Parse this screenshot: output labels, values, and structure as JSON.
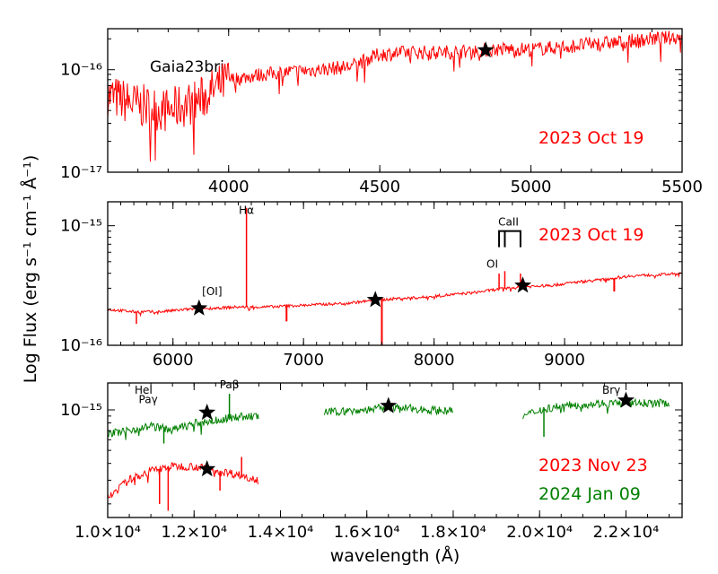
{
  "chart_data": {
    "type": "line",
    "object_name": "Gaia23bri",
    "ylabel": "Log Flux (erg s⁻¹ cm⁻¹ Å⁻¹)",
    "xlabel": "wavelength (Å)",
    "panels": [
      {
        "id": "blue",
        "xlim": [
          3600,
          5500
        ],
        "ylim_log": [
          -17,
          -15.6
        ],
        "x_ticks": [
          4000,
          4500,
          5000,
          5500
        ],
        "x_tick_labels": [
          "4000",
          "4500",
          "5000",
          "5500"
        ],
        "y_ticks": [
          -17,
          -16
        ],
        "y_tick_labels": [
          "10⁻¹⁷",
          "10⁻¹⁶"
        ],
        "dates": [
          {
            "label": "2023 Oct 19",
            "color": "#ff0000"
          }
        ],
        "series": [
          {
            "name": "2023 Oct 19",
            "color": "#ff0000",
            "x": [
              3600,
              3700,
              3800,
              3900,
              4000,
              4100,
              4200,
              4300,
              4400,
              4500,
              4600,
              4700,
              4800,
              4900,
              5000,
              5100,
              5200,
              5300,
              5400,
              5500
            ],
            "y": [
              -16.25,
              -16.35,
              -16.4,
              -16.3,
              -16.1,
              -16.05,
              -16.02,
              -16.0,
              -15.97,
              -15.85,
              -15.83,
              -15.83,
              -15.82,
              -15.8,
              -15.8,
              -15.78,
              -15.75,
              -15.73,
              -15.7,
              -15.68
            ]
          }
        ],
        "markers": [
          {
            "x": 4850,
            "y": -15.81
          }
        ],
        "annotations": []
      },
      {
        "id": "optical",
        "xlim": [
          5500,
          9900
        ],
        "ylim_log": [
          -16,
          -14.8
        ],
        "x_ticks": [
          6000,
          7000,
          8000,
          9000
        ],
        "x_tick_labels": [
          "6000",
          "7000",
          "8000",
          "9000"
        ],
        "y_ticks": [
          -16,
          -15
        ],
        "y_tick_labels": [
          "10⁻¹⁶",
          "10⁻¹⁵"
        ],
        "dates": [
          {
            "label": "2023 Oct 19",
            "color": "#ff0000"
          }
        ],
        "series": [
          {
            "name": "2023 Oct 19",
            "color": "#ff0000",
            "x": [
              5500,
              5700,
              5900,
              6100,
              6300,
              6500,
              6700,
              6900,
              7100,
              7300,
              7500,
              7700,
              7900,
              8100,
              8300,
              8500,
              8700,
              8900,
              9100,
              9300,
              9500,
              9700,
              9900
            ],
            "y": [
              -15.7,
              -15.72,
              -15.72,
              -15.7,
              -15.69,
              -15.68,
              -15.68,
              -15.67,
              -15.66,
              -15.65,
              -15.63,
              -15.61,
              -15.6,
              -15.58,
              -15.56,
              -15.53,
              -15.51,
              -15.5,
              -15.47,
              -15.45,
              -15.42,
              -15.41,
              -15.4
            ]
          }
        ],
        "markers": [
          {
            "x": 6200,
            "y": -15.69
          },
          {
            "x": 7550,
            "y": -15.62
          },
          {
            "x": 8680,
            "y": -15.5
          }
        ],
        "annotations": [
          {
            "label": "[OI]",
            "x": 6300,
            "y": -15.58
          },
          {
            "label": "Hα",
            "x": 6563,
            "y": -14.9
          },
          {
            "label": "OI",
            "x": 8446,
            "y": -15.35
          },
          {
            "label": "CaII",
            "x": 8570,
            "y": -15.0
          }
        ]
      },
      {
        "id": "nir",
        "xlim": [
          10000,
          23300
        ],
        "ylim_log": [
          -15.8,
          -14.8
        ],
        "x_ticks": [
          10000,
          12000,
          14000,
          16000,
          18000,
          20000,
          22000
        ],
        "x_tick_labels": [
          "1.0×10⁴",
          "1.2×10⁴",
          "1.4×10⁴",
          "1.6×10⁴",
          "1.8×10⁴",
          "2.0×10⁴",
          "2.2×10⁴"
        ],
        "y_ticks": [
          -15
        ],
        "y_tick_labels": [
          "10⁻¹⁵"
        ],
        "dates": [
          {
            "label": "2023 Nov 23",
            "color": "#ff0000"
          },
          {
            "label": "2024 Jan 09",
            "color": "#008000"
          }
        ],
        "series": [
          {
            "name": "2023 Nov 23",
            "color": "#ff0000",
            "x": [
              10000,
              10500,
              11000,
              11500,
              12000,
              12500,
              13000,
              13500
            ],
            "y": [
              -15.65,
              -15.52,
              -15.45,
              -15.42,
              -15.42,
              -15.45,
              -15.48,
              -15.52
            ]
          },
          {
            "name": "2024 Jan 09",
            "color": "#008000",
            "x": [
              10000,
              10500,
              11000,
              11500,
              12000,
              12500,
              13000,
              13500,
              15000,
              15500,
              16000,
              16500,
              17000,
              17500,
              18000,
              19600,
              20000,
              20500,
              21000,
              21500,
              22000,
              22500,
              23000
            ],
            "y": [
              -15.18,
              -15.15,
              -15.12,
              -15.15,
              -15.1,
              -15.08,
              -15.05,
              -15.05,
              -15.02,
              -15.01,
              -15.0,
              -14.98,
              -14.99,
              -15.0,
              -15.01,
              -15.05,
              -15.0,
              -14.97,
              -14.96,
              -14.95,
              -14.95,
              -14.95,
              -14.95
            ]
          }
        ],
        "markers": [
          {
            "x": 12300,
            "y": -15.02
          },
          {
            "x": 16500,
            "y": -14.97
          },
          {
            "x": 22000,
            "y": -14.93
          },
          {
            "x": 12300,
            "y": -15.44
          }
        ],
        "annotations": [
          {
            "label": "HeI",
            "x": 10830,
            "y": -14.88
          },
          {
            "label": "Paγ",
            "x": 10938,
            "y": -14.95
          },
          {
            "label": "Paβ",
            "x": 12818,
            "y": -14.84
          },
          {
            "label": "Brγ",
            "x": 21661,
            "y": -14.88
          }
        ]
      }
    ]
  }
}
